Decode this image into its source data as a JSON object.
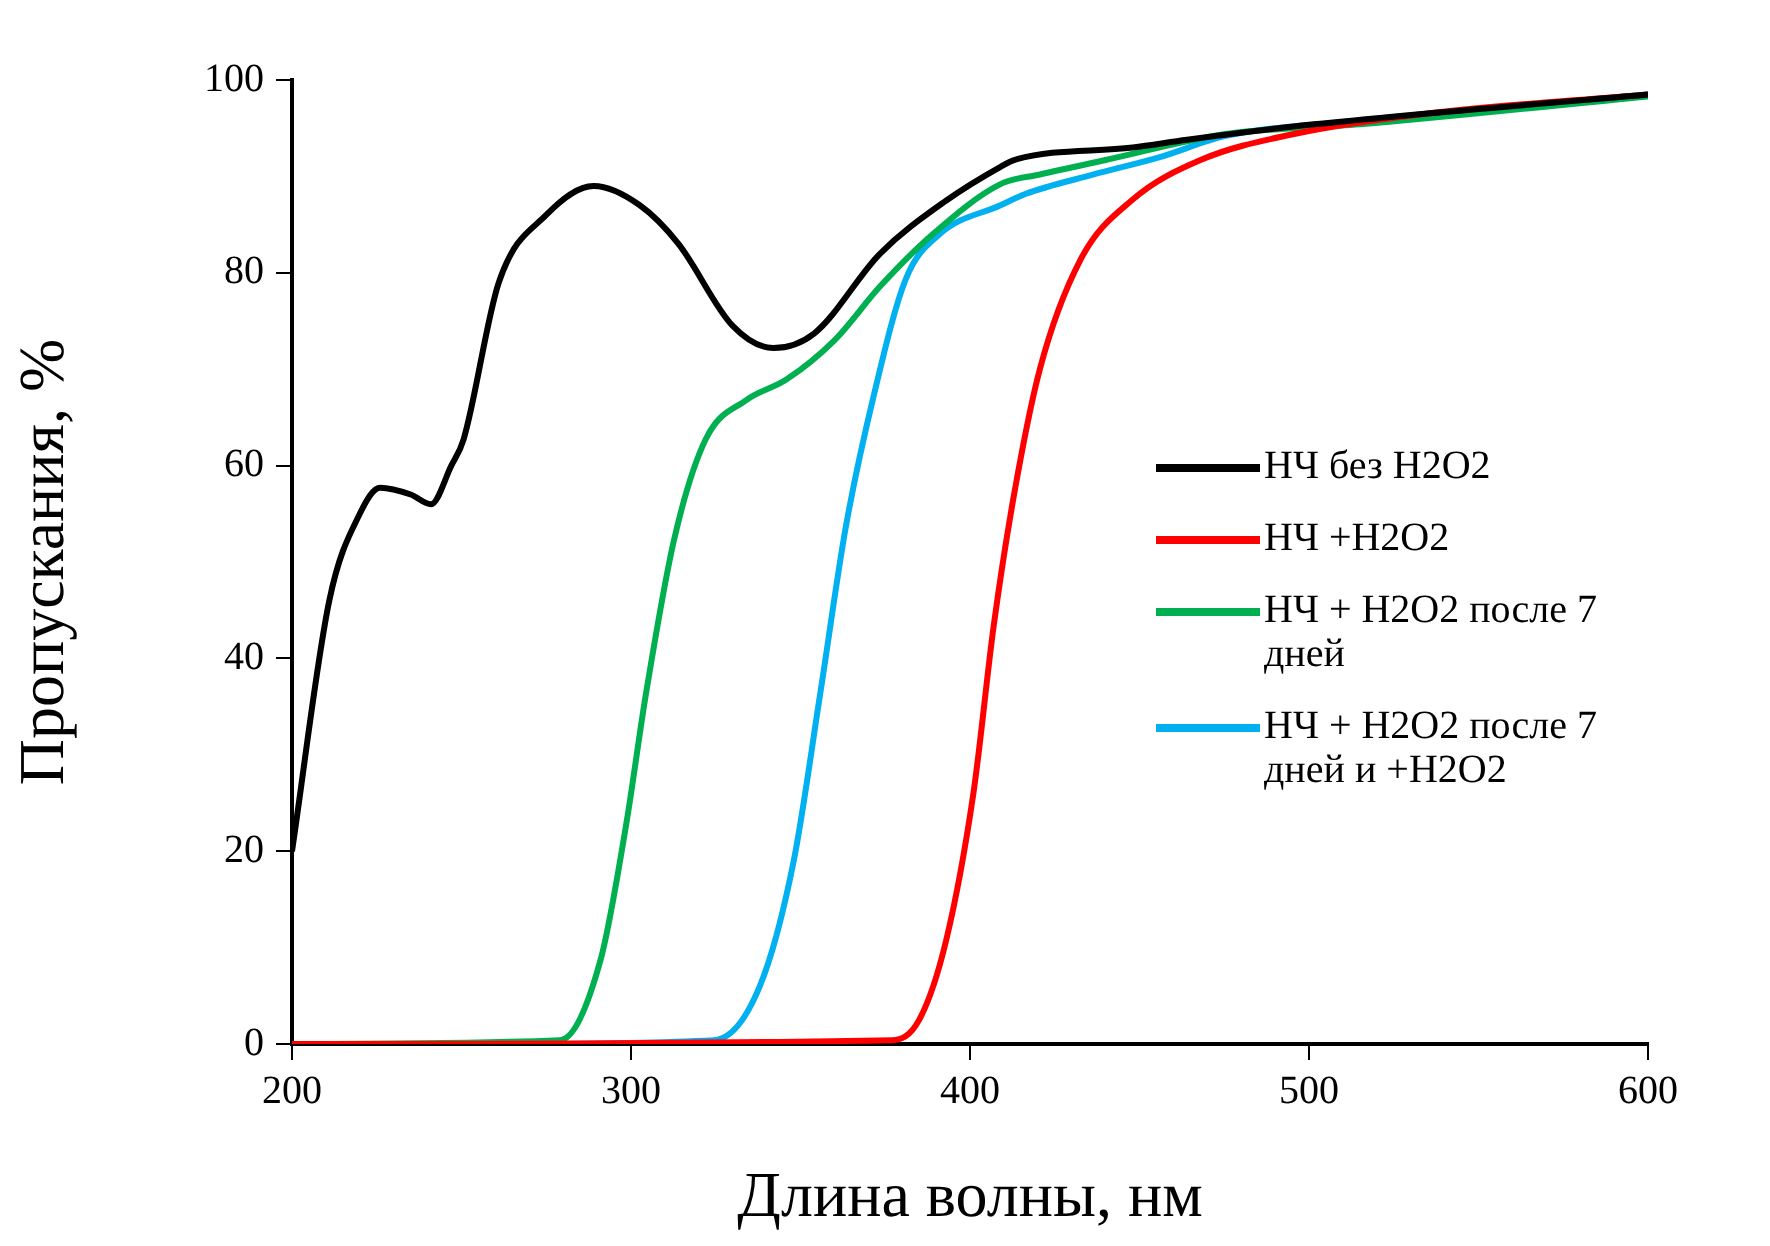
{
  "chart_data": {
    "type": "line",
    "xlabel": "Длина волны, нм",
    "ylabel": "Пропускания, %",
    "xlim": [
      200,
      600
    ],
    "xticks": [
      200,
      300,
      400,
      500,
      600
    ],
    "ylim": [
      0,
      100
    ],
    "yticks": [
      0,
      20,
      40,
      60,
      80,
      100
    ],
    "grid": false,
    "legend": "right",
    "marker": "none",
    "line_style": "solid",
    "series": [
      {
        "name": "НЧ без H2O2",
        "color": "#000000",
        "x": [
          200,
          211,
          220,
          226,
          235,
          241,
          247,
          250.6,
          261,
          275,
          289,
          302.6,
          314,
          330,
          342,
          354,
          373.5,
          393,
          409,
          413,
          448,
          464,
          501.5,
          600
        ],
        "values": [
          20,
          46,
          55,
          57.7,
          57,
          56,
          60,
          62.7,
          79,
          86,
          89,
          87,
          83,
          74.5,
          72.2,
          73.7,
          82,
          87.5,
          91,
          91.7,
          93,
          93.8,
          95.4,
          98.5
        ]
      },
      {
        "name": "НЧ +H2O2",
        "color": "#ff0000",
        "x": [
          200,
          377,
          385,
          393,
          401,
          407,
          413,
          420.6,
          432.5,
          448,
          468,
          495.6,
          534.5,
          600
        ],
        "values": [
          0,
          0.4,
          2.5,
          10.8,
          26,
          43.4,
          57,
          70,
          81.3,
          87.6,
          91.7,
          94.4,
          96.5,
          98.5
        ]
      },
      {
        "name": "НЧ + H2O2 после 7 дней",
        "color": "#00b050",
        "x": [
          200,
          279,
          291,
          298.5,
          304.4,
          312.7,
          322,
          334,
          345.7,
          360,
          373.5,
          389,
          409,
          420.6,
          440,
          475.5,
          515,
          600
        ],
        "values": [
          0,
          0.4,
          8.7,
          22.6,
          36.3,
          52.3,
          62.7,
          66.8,
          68.9,
          73,
          78.6,
          84,
          89.2,
          90.2,
          91.7,
          94.4,
          95.4,
          98.3
        ]
      },
      {
        "name": "НЧ + H2O2 после 7 дней и +H2O2",
        "color": "#00b0f0",
        "x": [
          260,
          324.5,
          338,
          348,
          355.8,
          363.4,
          371.7,
          381,
          391,
          409,
          416.5,
          436.5,
          456,
          475.5,
          515,
          600
        ],
        "values": [
          0,
          0.4,
          6,
          19,
          36.3,
          53.7,
          67.4,
          79.3,
          84,
          87,
          88.2,
          90.2,
          92,
          94.2,
          95.8,
          98.5
        ]
      }
    ]
  }
}
